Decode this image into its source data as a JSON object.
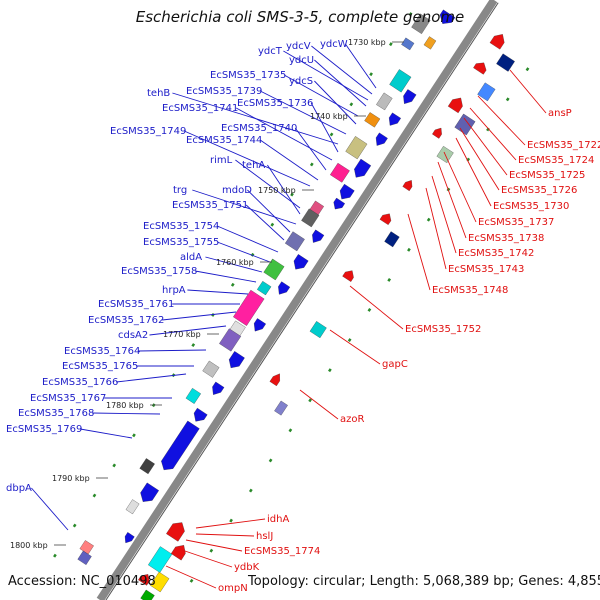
{
  "header": {
    "title": "Escherichia coli SMS-3-5, complete genome"
  },
  "footer": {
    "accession": "Accession: NC_010498",
    "summary": "Topology: circular; Length: 5,068,389 bp; Genes: 4,855"
  },
  "colors": {
    "left_label": "#1c1cc8",
    "right_label": "#e01010",
    "gene_blue": "#1010e0",
    "gene_red": "#e81010",
    "backbone": "#888888",
    "orf_dot": "#2a8a2a"
  },
  "ticks": [
    {
      "label": "1730 kbp"
    },
    {
      "label": "1740 kbp"
    },
    {
      "label": "1750 kbp"
    },
    {
      "label": "1760 kbp"
    },
    {
      "label": "1770 kbp"
    },
    {
      "label": "1780 kbp"
    },
    {
      "label": "1790 kbp"
    },
    {
      "label": "1800 kbp"
    }
  ],
  "left_labels": [
    {
      "text": "ydcW"
    },
    {
      "text": "ydcV"
    },
    {
      "text": "ydcT"
    },
    {
      "text": "ydcU"
    },
    {
      "text": "EcSMS35_1735"
    },
    {
      "text": "ydcS"
    },
    {
      "text": "EcSMS35_1739"
    },
    {
      "text": "tehB"
    },
    {
      "text": "EcSMS35_1736"
    },
    {
      "text": "EcSMS35_1741"
    },
    {
      "text": "EcSMS35_1740"
    },
    {
      "text": "EcSMS35_1749"
    },
    {
      "text": "EcSMS35_1744"
    },
    {
      "text": "rimL"
    },
    {
      "text": "tehA"
    },
    {
      "text": "trg"
    },
    {
      "text": "mdoD"
    },
    {
      "text": "EcSMS35_1751"
    },
    {
      "text": "EcSMS35_1754"
    },
    {
      "text": "EcSMS35_1755"
    },
    {
      "text": "aldA"
    },
    {
      "text": "EcSMS35_1758"
    },
    {
      "text": "hrpA"
    },
    {
      "text": "EcSMS35_1761"
    },
    {
      "text": "EcSMS35_1762"
    },
    {
      "text": "cdsA2"
    },
    {
      "text": "EcSMS35_1764"
    },
    {
      "text": "EcSMS35_1765"
    },
    {
      "text": "EcSMS35_1766"
    },
    {
      "text": "EcSMS35_1767"
    },
    {
      "text": "EcSMS35_1768"
    },
    {
      "text": "EcSMS35_1769"
    },
    {
      "text": "dbpA"
    }
  ],
  "right_labels": [
    {
      "text": "ansP"
    },
    {
      "text": "EcSMS35_1722"
    },
    {
      "text": "EcSMS35_1724"
    },
    {
      "text": "EcSMS35_1725"
    },
    {
      "text": "EcSMS35_1726"
    },
    {
      "text": "EcSMS35_1730"
    },
    {
      "text": "EcSMS35_1737"
    },
    {
      "text": "EcSMS35_1738"
    },
    {
      "text": "EcSMS35_1742"
    },
    {
      "text": "EcSMS35_1743"
    },
    {
      "text": "EcSMS35_1748"
    },
    {
      "text": "EcSMS35_1752"
    },
    {
      "text": "gapC"
    },
    {
      "text": "azoR"
    },
    {
      "text": "idhA"
    },
    {
      "text": "hslJ"
    },
    {
      "text": "EcSMS35_1774"
    },
    {
      "text": "ydbK"
    },
    {
      "text": "ompN"
    }
  ]
}
